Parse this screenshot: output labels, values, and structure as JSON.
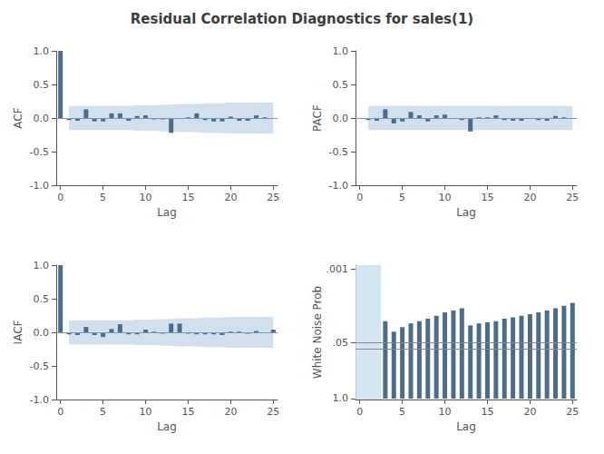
{
  "title": "Residual Correlation Diagnostics for sales(1)",
  "chart_data": [
    {
      "type": "bar",
      "xlabel": "Lag",
      "ylabel": "ACF",
      "color": "#4d6b8a",
      "grid": false,
      "x": [
        0,
        1,
        2,
        3,
        4,
        5,
        6,
        7,
        8,
        9,
        10,
        11,
        12,
        13,
        14,
        15,
        16,
        17,
        18,
        19,
        20,
        21,
        22,
        23,
        24,
        25
      ],
      "values": [
        1.0,
        -0.03,
        -0.04,
        0.13,
        -0.05,
        -0.05,
        0.07,
        0.07,
        -0.04,
        0.03,
        0.04,
        -0.02,
        -0.02,
        -0.22,
        -0.01,
        0.01,
        0.07,
        -0.03,
        -0.05,
        -0.05,
        0.02,
        -0.04,
        -0.04,
        0.04,
        0.01,
        -0.01
      ],
      "xlim": [
        -0.5,
        25.5
      ],
      "xticks": [
        0,
        5,
        10,
        15,
        20,
        25
      ],
      "ylim": [
        -1.0,
        1.0
      ],
      "yticks": [
        {
          "value": -1.0,
          "label": "-1.0"
        },
        -0.5,
        {
          "value": 0.0,
          "label": "0.0"
        },
        0.5,
        {
          "value": 1.0,
          "label": "1.0"
        }
      ],
      "band": {
        "color": "#adc6e0",
        "x": [
          1,
          2,
          3,
          4,
          5,
          6,
          7,
          8,
          9,
          10,
          11,
          12,
          13,
          14,
          15,
          16,
          17,
          18,
          19,
          20,
          21,
          22,
          23,
          24,
          25
        ],
        "upper": [
          0.18,
          0.18,
          0.18,
          0.18,
          0.18,
          0.18,
          0.18,
          0.18,
          0.19,
          0.19,
          0.19,
          0.2,
          0.2,
          0.21,
          0.21,
          0.21,
          0.22,
          0.22,
          0.22,
          0.23,
          0.23,
          0.23,
          0.23,
          0.23,
          0.23
        ],
        "lower": [
          -0.18,
          -0.18,
          -0.18,
          -0.18,
          -0.18,
          -0.18,
          -0.18,
          -0.18,
          -0.19,
          -0.19,
          -0.19,
          -0.2,
          -0.2,
          -0.21,
          -0.21,
          -0.21,
          -0.22,
          -0.22,
          -0.22,
          -0.23,
          -0.23,
          -0.23,
          -0.23,
          -0.23,
          -0.23
        ]
      },
      "hlines": [
        {
          "value": 0,
          "color": "#7799bb"
        }
      ]
    },
    {
      "type": "bar",
      "xlabel": "Lag",
      "ylabel": "PACF",
      "color": "#4d6b8a",
      "grid": false,
      "x": [
        1,
        2,
        3,
        4,
        5,
        6,
        7,
        8,
        9,
        10,
        11,
        12,
        13,
        14,
        15,
        16,
        17,
        18,
        19,
        20,
        21,
        22,
        23,
        24,
        25
      ],
      "values": [
        -0.03,
        -0.04,
        0.13,
        -0.08,
        -0.05,
        0.09,
        0.04,
        -0.05,
        0.04,
        0.05,
        -0.01,
        -0.03,
        -0.2,
        0.01,
        0.01,
        0.04,
        -0.03,
        -0.04,
        -0.04,
        0.0,
        -0.03,
        -0.04,
        0.03,
        0.01,
        -0.01
      ],
      "xlim": [
        -0.5,
        25.5
      ],
      "xticks": [
        0,
        5,
        10,
        15,
        20,
        25
      ],
      "ylim": [
        -1.0,
        1.0
      ],
      "yticks": [
        {
          "value": -1.0,
          "label": "-1.0"
        },
        -0.5,
        {
          "value": 0.0,
          "label": "0.0"
        },
        0.5,
        {
          "value": 1.0,
          "label": "1.0"
        }
      ],
      "band": {
        "color": "#adc6e0",
        "x": [
          1,
          2,
          3,
          4,
          5,
          6,
          7,
          8,
          9,
          10,
          11,
          12,
          13,
          14,
          15,
          16,
          17,
          18,
          19,
          20,
          21,
          22,
          23,
          24,
          25
        ],
        "upper": [
          0.18,
          0.18,
          0.18,
          0.18,
          0.18,
          0.18,
          0.18,
          0.18,
          0.18,
          0.18,
          0.18,
          0.18,
          0.18,
          0.18,
          0.18,
          0.18,
          0.18,
          0.18,
          0.18,
          0.18,
          0.18,
          0.18,
          0.18,
          0.18,
          0.18
        ],
        "lower": [
          -0.18,
          -0.18,
          -0.18,
          -0.18,
          -0.18,
          -0.18,
          -0.18,
          -0.18,
          -0.18,
          -0.18,
          -0.18,
          -0.18,
          -0.18,
          -0.18,
          -0.18,
          -0.18,
          -0.18,
          -0.18,
          -0.18,
          -0.18,
          -0.18,
          -0.18,
          -0.18,
          -0.18,
          -0.18
        ]
      },
      "hlines": [
        {
          "value": 0,
          "color": "#7799bb"
        }
      ]
    },
    {
      "type": "bar",
      "xlabel": "Lag",
      "ylabel": "IACF",
      "color": "#4d6b8a",
      "grid": false,
      "x": [
        0,
        1,
        2,
        3,
        4,
        5,
        6,
        7,
        8,
        9,
        10,
        11,
        12,
        13,
        14,
        15,
        16,
        17,
        18,
        19,
        20,
        21,
        22,
        23,
        24,
        25
      ],
      "values": [
        1.0,
        -0.03,
        -0.04,
        0.08,
        -0.04,
        -0.07,
        0.05,
        0.12,
        -0.03,
        -0.03,
        0.04,
        0.01,
        -0.02,
        0.13,
        0.13,
        -0.02,
        -0.03,
        -0.03,
        -0.03,
        -0.04,
        0.01,
        0.01,
        -0.02,
        0.02,
        -0.01,
        0.04
      ],
      "xlim": [
        -0.5,
        25.5
      ],
      "xticks": [
        0,
        5,
        10,
        15,
        20,
        25
      ],
      "ylim": [
        -1.0,
        1.0
      ],
      "yticks": [
        {
          "value": -1.0,
          "label": "-1.0"
        },
        -0.5,
        {
          "value": 0.0,
          "label": "0.0"
        },
        0.5,
        {
          "value": 1.0,
          "label": "1.0"
        }
      ],
      "band": {
        "color": "#adc6e0",
        "x": [
          1,
          2,
          3,
          4,
          5,
          6,
          7,
          8,
          9,
          10,
          11,
          12,
          13,
          14,
          15,
          16,
          17,
          18,
          19,
          20,
          21,
          22,
          23,
          24,
          25
        ],
        "upper": [
          0.18,
          0.18,
          0.18,
          0.18,
          0.18,
          0.18,
          0.18,
          0.18,
          0.19,
          0.19,
          0.19,
          0.2,
          0.2,
          0.21,
          0.21,
          0.21,
          0.22,
          0.22,
          0.22,
          0.23,
          0.23,
          0.23,
          0.23,
          0.23,
          0.23
        ],
        "lower": [
          -0.18,
          -0.18,
          -0.18,
          -0.18,
          -0.18,
          -0.18,
          -0.18,
          -0.18,
          -0.19,
          -0.19,
          -0.19,
          -0.2,
          -0.2,
          -0.21,
          -0.21,
          -0.21,
          -0.22,
          -0.22,
          -0.22,
          -0.23,
          -0.23,
          -0.23,
          -0.23,
          -0.23,
          -0.23
        ]
      },
      "hlines": [
        {
          "value": 0,
          "color": "#7799bb"
        }
      ]
    },
    {
      "type": "bar",
      "xlabel": "Lag",
      "ylabel": "White Noise Prob",
      "color": "#4d6b8a",
      "grid": false,
      "log": "y",
      "x": [
        3,
        4,
        5,
        6,
        7,
        8,
        9,
        10,
        11,
        12,
        13,
        14,
        15,
        16,
        17,
        18,
        19,
        20,
        21,
        22,
        23,
        24,
        25
      ],
      "values": [
        0.016,
        0.028,
        0.022,
        0.018,
        0.016,
        0.014,
        0.012,
        0.01,
        0.009,
        0.008,
        0.02,
        0.018,
        0.017,
        0.016,
        0.014,
        0.013,
        0.012,
        0.011,
        0.01,
        0.009,
        0.008,
        0.007,
        0.006
      ],
      "xlim": [
        -0.5,
        25.5
      ],
      "xticks": [
        0,
        5,
        10,
        15,
        20,
        25
      ],
      "ylim": [
        1.05,
        0.0008
      ],
      "yticks": [
        {
          "value": 0.001,
          "label": ".001"
        },
        {
          "value": 0.05,
          "label": ".05"
        },
        {
          "value": 1.0,
          "label": "1.0"
        }
      ],
      "highlight": {
        "xlim": [
          -0.5,
          2.5
        ],
        "color": "#cde0f0"
      },
      "hlines": [
        {
          "value": 0.05,
          "color": "#888888"
        },
        {
          "value": 0.07,
          "color": "#888888"
        }
      ]
    }
  ]
}
